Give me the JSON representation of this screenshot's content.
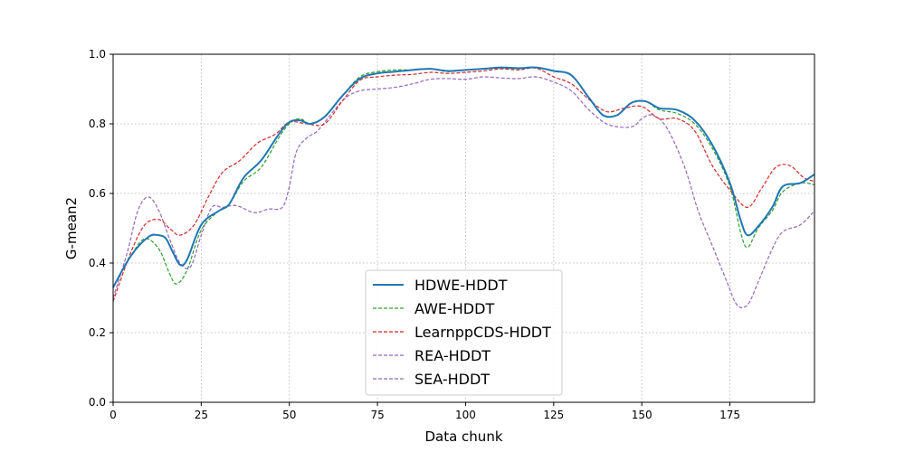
{
  "chart_data": {
    "type": "line",
    "title": "",
    "xlabel": "Data chunk",
    "ylabel": "G-mean2",
    "xlim": [
      0,
      199
    ],
    "ylim": [
      0.0,
      1.0
    ],
    "xticks": [
      0,
      25,
      50,
      75,
      100,
      125,
      150,
      175
    ],
    "yticks": [
      0.0,
      0.2,
      0.4,
      0.6,
      0.8,
      1.0
    ],
    "grid": true,
    "legend_position": "lower-center",
    "series": [
      {
        "name": "HDWE-HDDT",
        "color": "#1f77b4",
        "style": "solid",
        "x": [
          0,
          5,
          10,
          13,
          15,
          17,
          19,
          21,
          25,
          30,
          33,
          37,
          42,
          47,
          50,
          53,
          56,
          60,
          65,
          70,
          75,
          80,
          85,
          90,
          95,
          100,
          105,
          110,
          115,
          120,
          125,
          130,
          135,
          139,
          143,
          147,
          151,
          155,
          160,
          165,
          170,
          175,
          178,
          180,
          183,
          187,
          190,
          195,
          199
        ],
        "y": [
          0.33,
          0.42,
          0.475,
          0.48,
          0.47,
          0.43,
          0.395,
          0.41,
          0.51,
          0.55,
          0.57,
          0.645,
          0.695,
          0.77,
          0.805,
          0.81,
          0.8,
          0.82,
          0.88,
          0.93,
          0.945,
          0.95,
          0.955,
          0.958,
          0.952,
          0.955,
          0.958,
          0.962,
          0.96,
          0.962,
          0.952,
          0.94,
          0.875,
          0.825,
          0.825,
          0.86,
          0.865,
          0.845,
          0.84,
          0.81,
          0.74,
          0.63,
          0.525,
          0.48,
          0.505,
          0.56,
          0.62,
          0.63,
          0.655
        ]
      },
      {
        "name": "AWE-HDDT",
        "color": "#2ca02c",
        "style": "dashed",
        "x": [
          0,
          5,
          9,
          13,
          16,
          18,
          21,
          25,
          30,
          33,
          37,
          42,
          47,
          50,
          53,
          56,
          60,
          65,
          70,
          75,
          80,
          85,
          90,
          95,
          100,
          105,
          110,
          115,
          120,
          125,
          130,
          135,
          139,
          143,
          147,
          151,
          155,
          160,
          165,
          170,
          175,
          178,
          180,
          183,
          187,
          190,
          195,
          199
        ],
        "y": [
          0.33,
          0.42,
          0.47,
          0.44,
          0.37,
          0.34,
          0.38,
          0.495,
          0.55,
          0.57,
          0.635,
          0.675,
          0.76,
          0.8,
          0.815,
          0.8,
          0.82,
          0.88,
          0.935,
          0.95,
          0.955,
          0.955,
          0.958,
          0.95,
          0.955,
          0.958,
          0.96,
          0.958,
          0.962,
          0.952,
          0.94,
          0.875,
          0.825,
          0.825,
          0.86,
          0.865,
          0.84,
          0.83,
          0.8,
          0.73,
          0.62,
          0.49,
          0.445,
          0.5,
          0.55,
          0.605,
          0.63,
          0.625
        ]
      },
      {
        "name": "LearnppCDS-HDDT",
        "color": "#d62728",
        "style": "dashed",
        "x": [
          0,
          5,
          9,
          13,
          16,
          19,
          23,
          27,
          31,
          36,
          41,
          46,
          50,
          55,
          60,
          65,
          70,
          75,
          80,
          85,
          90,
          95,
          100,
          105,
          110,
          115,
          120,
          125,
          130,
          135,
          140,
          145,
          150,
          155,
          160,
          165,
          170,
          175,
          180,
          184,
          188,
          192,
          196,
          199
        ],
        "y": [
          0.29,
          0.43,
          0.51,
          0.525,
          0.5,
          0.48,
          0.51,
          0.59,
          0.66,
          0.695,
          0.745,
          0.77,
          0.805,
          0.8,
          0.8,
          0.865,
          0.925,
          0.935,
          0.94,
          0.942,
          0.948,
          0.945,
          0.948,
          0.952,
          0.958,
          0.955,
          0.96,
          0.935,
          0.915,
          0.87,
          0.835,
          0.845,
          0.85,
          0.815,
          0.815,
          0.78,
          0.68,
          0.61,
          0.56,
          0.615,
          0.675,
          0.68,
          0.645,
          0.635
        ]
      },
      {
        "name": "REA-HDDT",
        "color": "#9467bd",
        "style": "dashed",
        "x": [
          0,
          4,
          7,
          10,
          13,
          16,
          19,
          22,
          25,
          28,
          31,
          35,
          40,
          44,
          48,
          50,
          52,
          55,
          58,
          62,
          66,
          70,
          75,
          80,
          85,
          90,
          95,
          100,
          105,
          110,
          115,
          120,
          125,
          130,
          135,
          140,
          145,
          148,
          150,
          153,
          157,
          162,
          166,
          170,
          174,
          177,
          180,
          183,
          187,
          190,
          195,
          199
        ],
        "y": [
          0.3,
          0.43,
          0.55,
          0.59,
          0.55,
          0.47,
          0.4,
          0.39,
          0.48,
          0.56,
          0.56,
          0.565,
          0.545,
          0.555,
          0.56,
          0.62,
          0.72,
          0.76,
          0.78,
          0.83,
          0.875,
          0.895,
          0.9,
          0.905,
          0.915,
          0.928,
          0.93,
          0.928,
          0.935,
          0.932,
          0.93,
          0.935,
          0.92,
          0.895,
          0.84,
          0.8,
          0.79,
          0.795,
          0.815,
          0.825,
          0.79,
          0.68,
          0.55,
          0.45,
          0.35,
          0.28,
          0.28,
          0.345,
          0.44,
          0.49,
          0.51,
          0.55
        ]
      },
      {
        "name": "SEA-HDDT",
        "color": "#8c6bb1",
        "style": "dashed",
        "x": [
          0
        ],
        "y": [
          0.3
        ]
      }
    ]
  }
}
